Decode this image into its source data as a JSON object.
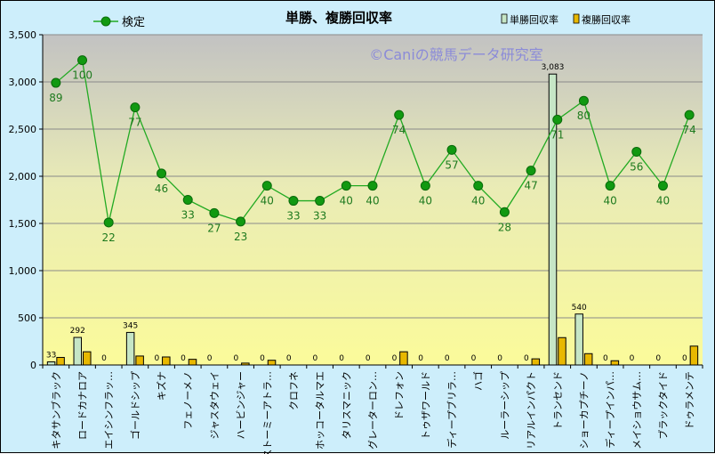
{
  "chart_data": {
    "type": "bar",
    "title": "単勝、複勝回収率",
    "watermark": "©Caniの競馬データ研究室",
    "ylim": [
      0,
      3500
    ],
    "yticks": [
      0,
      500,
      1000,
      1500,
      2000,
      2500,
      3000,
      3500
    ],
    "ytick_labels": [
      "0",
      "500",
      "1,000",
      "1,500",
      "2,000",
      "2,500",
      "3,000",
      "3,500"
    ],
    "grid": true,
    "legend": "top",
    "categories": [
      "キタサンブラック",
      "ロードカナロア",
      "エイシンフラッ…",
      "ゴールドシップ",
      "キズナ",
      "フェノーメノ",
      "ジャスタウェイ",
      "ハービンジャー",
      "ストーミーアトラ…",
      "クロフネ",
      "ホッコータルマエ",
      "タリスマニック",
      "グレーターロン…",
      "ドレフォン",
      "トゥザワールド",
      "ディープブリラ…",
      "ハゴ",
      "ルーラーシップ",
      "リアルインパクト",
      "トランセンド",
      "ショーカプチーノ",
      "ディープインパ…",
      "メイショウサム…",
      "ブラックタイド",
      "ドゥラメンテ"
    ],
    "series": [
      {
        "name": "単勝回収率",
        "kind": "bar",
        "color": "#c6e6c6",
        "values": [
          33,
          292,
          0,
          345,
          0,
          0,
          0,
          0,
          0,
          0,
          0,
          0,
          0,
          0,
          0,
          0,
          0,
          0,
          0,
          3083,
          540,
          0,
          0,
          0,
          0
        ],
        "labels": [
          "33",
          "292",
          "0",
          "345",
          "0",
          "0",
          "0",
          "0",
          "0",
          "0",
          "0",
          "0",
          "0",
          "0",
          "0",
          "0",
          "0",
          "0",
          "0",
          "3,083",
          "540",
          "0",
          "0",
          "0",
          "0"
        ]
      },
      {
        "name": "複勝回収率",
        "kind": "bar",
        "color": "#e8b800",
        "values": [
          80,
          140,
          0,
          95,
          85,
          60,
          0,
          20,
          50,
          0,
          0,
          0,
          0,
          140,
          0,
          0,
          0,
          0,
          65,
          290,
          120,
          45,
          0,
          0,
          200
        ]
      },
      {
        "name": "検定",
        "kind": "line",
        "color": "#22aa22",
        "values": [
          2990,
          3230,
          1510,
          2730,
          2030,
          1750,
          1610,
          1520,
          1900,
          1740,
          1740,
          1900,
          1900,
          2650,
          1900,
          2280,
          1900,
          1620,
          2060,
          2600,
          2800,
          1900,
          2260,
          1900,
          2650
        ],
        "labels": [
          "89",
          "100",
          "22",
          "77",
          "46",
          "33",
          "27",
          "23",
          "40",
          "33",
          "33",
          "40",
          "40",
          "74",
          "40",
          "57",
          "40",
          "28",
          "47",
          "71",
          "80",
          "40",
          "56",
          "40",
          "74"
        ]
      }
    ]
  }
}
